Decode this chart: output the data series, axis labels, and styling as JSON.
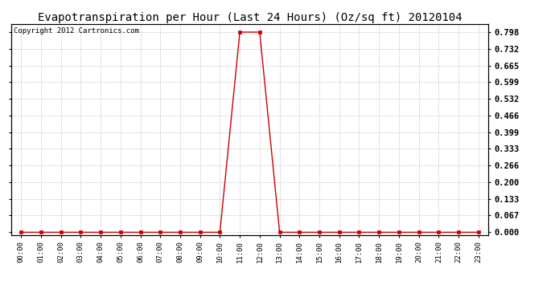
{
  "title": "Evapotranspiration per Hour (Last 24 Hours) (Oz/sq ft) 20120104",
  "copyright_text": "Copyright 2012 Cartronics.com",
  "hours": [
    "00:00",
    "01:00",
    "02:00",
    "03:00",
    "04:00",
    "05:00",
    "06:00",
    "07:00",
    "08:00",
    "09:00",
    "10:00",
    "11:00",
    "12:00",
    "13:00",
    "14:00",
    "15:00",
    "16:00",
    "17:00",
    "18:00",
    "19:00",
    "20:00",
    "21:00",
    "22:00",
    "23:00"
  ],
  "values": [
    0.0,
    0.0,
    0.0,
    0.0,
    0.0,
    0.0,
    0.0,
    0.0,
    0.0,
    0.0,
    0.0,
    0.798,
    0.798,
    0.0,
    0.0,
    0.0,
    0.0,
    0.0,
    0.0,
    0.0,
    0.0,
    0.0,
    0.0,
    0.0
  ],
  "yticks": [
    0.0,
    0.067,
    0.133,
    0.2,
    0.266,
    0.333,
    0.399,
    0.466,
    0.532,
    0.599,
    0.665,
    0.732,
    0.798
  ],
  "ytick_labels": [
    "0.000",
    "0.067",
    "0.133",
    "0.200",
    "0.266",
    "0.333",
    "0.399",
    "0.466",
    "0.532",
    "0.599",
    "0.665",
    "0.732",
    "0.798"
  ],
  "ylim_min": -0.01,
  "ylim_max": 0.83,
  "line_color": "#cc0000",
  "marker": "s",
  "marker_size": 2.5,
  "bg_color": "#ffffff",
  "plot_bg_color": "#ffffff",
  "grid_color": "#bbbbbb",
  "title_fontsize": 10,
  "copyright_fontsize": 6.5,
  "tick_fontsize": 7.5,
  "xtick_fontsize": 6.5
}
